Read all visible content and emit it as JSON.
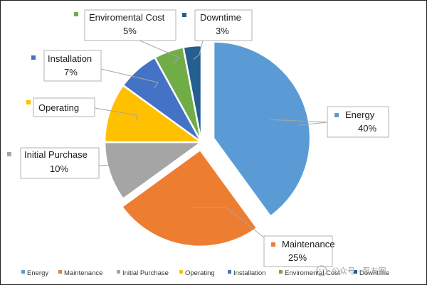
{
  "chart_data": {
    "type": "pie",
    "title": "",
    "slices": [
      {
        "label": "Energy",
        "value": 40,
        "value_label": "40%",
        "color": "#5b9bd5"
      },
      {
        "label": "Maintenance",
        "value": 25,
        "value_label": "25%",
        "color": "#ed7d31"
      },
      {
        "label": "Initial Purchase",
        "value": 10,
        "value_label": "10%",
        "color": "#a5a5a5"
      },
      {
        "label": "Operating",
        "value": 10,
        "value_label": "",
        "color": "#ffc000"
      },
      {
        "label": "Installation",
        "value": 7,
        "value_label": "7%",
        "color": "#4472c4"
      },
      {
        "label": "Enviromental Cost",
        "value": 5,
        "value_label": "5%",
        "color": "#70ad47"
      },
      {
        "label": "Downtime",
        "value": 3,
        "value_label": "3%",
        "color": "#255e91"
      }
    ],
    "exploded": [
      "Energy",
      "Maintenance"
    ],
    "legend_position": "bottom"
  },
  "watermark": "公众号 · 泵友圈"
}
